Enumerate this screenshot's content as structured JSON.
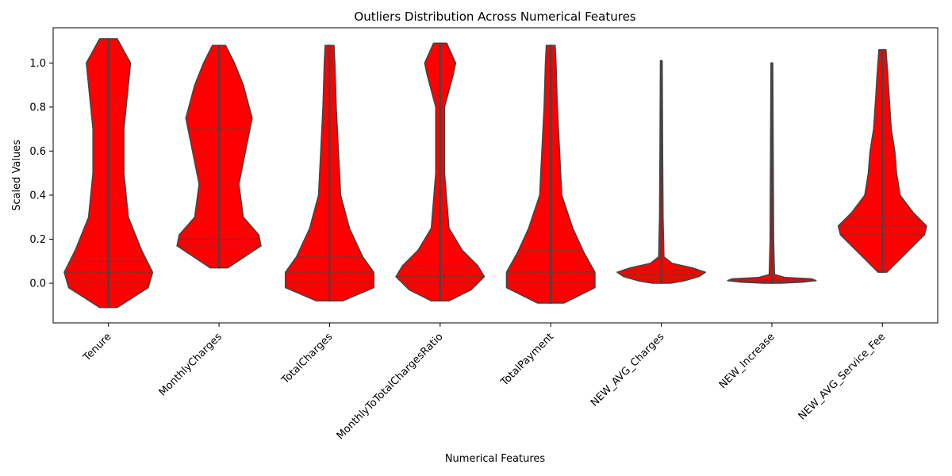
{
  "chart_data": {
    "type": "violin",
    "title": "Outliers Distribution Across Numerical Features",
    "xlabel": "Numerical Features",
    "ylabel": "Scaled Values",
    "ylim": [
      -0.18,
      1.16
    ],
    "yticks": [
      "0.0",
      "0.2",
      "0.4",
      "0.6",
      "0.8",
      "1.0"
    ],
    "ytick_values": [
      0.0,
      0.2,
      0.4,
      0.6,
      0.8,
      1.0
    ],
    "grid": false,
    "fill_color": "#ff0000",
    "edge_color": "#444444",
    "categories": [
      "Tenure",
      "MonthlyCharges",
      "TotalCharges",
      "MonthlyToTotalChargesRatio",
      "TotalPayment",
      "NEW_AVG_Charges",
      "NEW_Increase",
      "NEW_AVG_Service_Fee"
    ],
    "violins": [
      {
        "name": "Tenure",
        "min": -0.11,
        "max": 1.11,
        "q1": 0.0,
        "median": 0.05,
        "q3": 0.1,
        "density": [
          [
            -0.11,
            0.2
          ],
          [
            -0.02,
            0.9
          ],
          [
            0.05,
            1.0
          ],
          [
            0.15,
            0.75
          ],
          [
            0.3,
            0.45
          ],
          [
            0.5,
            0.35
          ],
          [
            0.7,
            0.35
          ],
          [
            0.9,
            0.45
          ],
          [
            1.0,
            0.5
          ],
          [
            1.11,
            0.2
          ]
        ]
      },
      {
        "name": "MonthlyCharges",
        "min": 0.07,
        "max": 1.08,
        "q1": 0.17,
        "median": 0.2,
        "q3": 0.7,
        "density": [
          [
            0.07,
            0.2
          ],
          [
            0.17,
            0.95
          ],
          [
            0.22,
            0.9
          ],
          [
            0.3,
            0.55
          ],
          [
            0.45,
            0.45
          ],
          [
            0.6,
            0.6
          ],
          [
            0.75,
            0.75
          ],
          [
            0.9,
            0.55
          ],
          [
            1.0,
            0.35
          ],
          [
            1.08,
            0.15
          ]
        ]
      },
      {
        "name": "TotalCharges",
        "min": -0.08,
        "max": 1.08,
        "q1": 0.0,
        "median": 0.05,
        "q3": 0.12,
        "density": [
          [
            -0.08,
            0.3
          ],
          [
            -0.02,
            1.0
          ],
          [
            0.05,
            1.0
          ],
          [
            0.12,
            0.75
          ],
          [
            0.25,
            0.45
          ],
          [
            0.4,
            0.25
          ],
          [
            0.6,
            0.2
          ],
          [
            0.8,
            0.15
          ],
          [
            1.0,
            0.12
          ],
          [
            1.08,
            0.1
          ]
        ]
      },
      {
        "name": "MonthlyToTotalChargesRatio",
        "min": -0.08,
        "max": 1.09,
        "q1": 0.0,
        "median": 0.03,
        "q3": 0.08,
        "density": [
          [
            -0.08,
            0.2
          ],
          [
            -0.03,
            0.7
          ],
          [
            0.03,
            1.0
          ],
          [
            0.08,
            0.85
          ],
          [
            0.15,
            0.5
          ],
          [
            0.25,
            0.2
          ],
          [
            0.5,
            0.1
          ],
          [
            0.8,
            0.1
          ],
          [
            0.95,
            0.3
          ],
          [
            1.0,
            0.35
          ],
          [
            1.09,
            0.15
          ]
        ]
      },
      {
        "name": "TotalPayment",
        "min": -0.09,
        "max": 1.08,
        "q1": 0.0,
        "median": 0.05,
        "q3": 0.15,
        "density": [
          [
            -0.09,
            0.3
          ],
          [
            -0.02,
            1.0
          ],
          [
            0.05,
            1.0
          ],
          [
            0.14,
            0.75
          ],
          [
            0.25,
            0.5
          ],
          [
            0.4,
            0.25
          ],
          [
            0.6,
            0.2
          ],
          [
            0.8,
            0.15
          ],
          [
            1.0,
            0.12
          ],
          [
            1.08,
            0.1
          ]
        ]
      },
      {
        "name": "NEW_AVG_Charges",
        "min": 0.0,
        "max": 1.01,
        "q1": 0.02,
        "median": 0.04,
        "q3": 0.06,
        "density": [
          [
            0.0,
            0.2
          ],
          [
            0.01,
            0.5
          ],
          [
            0.03,
            0.85
          ],
          [
            0.05,
            1.0
          ],
          [
            0.07,
            0.7
          ],
          [
            0.09,
            0.25
          ],
          [
            0.12,
            0.06
          ],
          [
            0.3,
            0.04
          ],
          [
            0.6,
            0.03
          ],
          [
            1.01,
            0.02
          ]
        ]
      },
      {
        "name": "NEW_Increase",
        "min": 0.0,
        "max": 1.0,
        "q1": 0.005,
        "median": 0.01,
        "q3": 0.015,
        "density": [
          [
            0.0,
            0.2
          ],
          [
            0.005,
            0.7
          ],
          [
            0.012,
            1.0
          ],
          [
            0.02,
            0.9
          ],
          [
            0.026,
            0.3
          ],
          [
            0.04,
            0.06
          ],
          [
            0.2,
            0.04
          ],
          [
            0.6,
            0.03
          ],
          [
            1.0,
            0.02
          ]
        ]
      },
      {
        "name": "NEW_AVG_Service_Fee",
        "min": 0.05,
        "max": 1.06,
        "q1": 0.22,
        "median": 0.26,
        "q3": 0.3,
        "density": [
          [
            0.05,
            0.1
          ],
          [
            0.15,
            0.6
          ],
          [
            0.22,
            0.95
          ],
          [
            0.26,
            1.0
          ],
          [
            0.32,
            0.7
          ],
          [
            0.4,
            0.4
          ],
          [
            0.5,
            0.32
          ],
          [
            0.6,
            0.28
          ],
          [
            0.7,
            0.2
          ],
          [
            0.85,
            0.15
          ],
          [
            0.95,
            0.12
          ],
          [
            1.06,
            0.08
          ]
        ]
      }
    ]
  }
}
